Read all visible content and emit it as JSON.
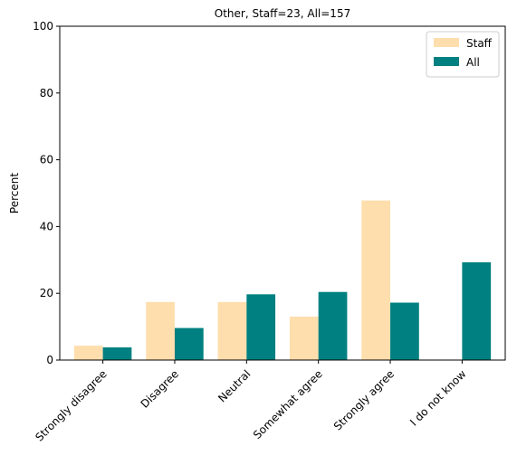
{
  "chart_data": {
    "type": "bar",
    "title": "Other, Staff=23, All=157",
    "ylabel": "Percent",
    "xlabel": "",
    "ylim": [
      0,
      100
    ],
    "yticks": [
      0,
      20,
      40,
      60,
      80,
      100
    ],
    "categories": [
      "Strongly disagree",
      "Disagree",
      "Neutral",
      "Somewhat agree",
      "Strongly agree",
      "I do not know"
    ],
    "series": [
      {
        "name": "Staff",
        "color": "#FFDEAD",
        "values": [
          4.3,
          17.4,
          17.4,
          13.0,
          47.8,
          0.0
        ]
      },
      {
        "name": "All",
        "color": "#008080",
        "values": [
          3.8,
          9.6,
          19.7,
          20.4,
          17.2,
          29.3
        ]
      }
    ],
    "legend_position": "top-right",
    "grid": false
  }
}
